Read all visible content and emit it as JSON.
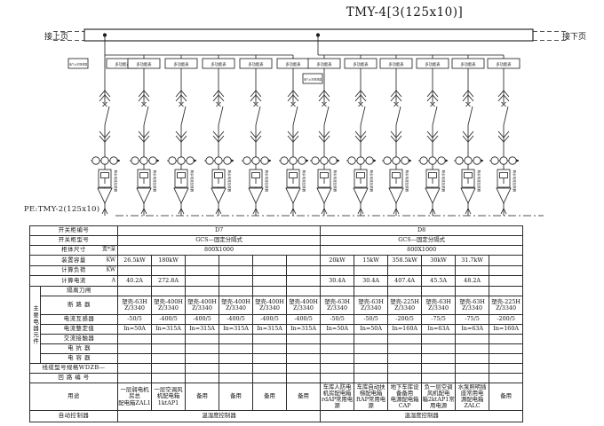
{
  "title": "TMY-4[3(125x10)]",
  "page_links": {
    "prev": "接上页",
    "next": "接下页"
  },
  "pe_label": "PE:TMY-2(125x10)",
  "colors": {
    "ink": "#1a1a1a",
    "paper": "#ffffff"
  },
  "feeders": {
    "meter_label": "多功能表",
    "aux_label": "电气火灾探测器",
    "ct_label": "剩余电流互感器",
    "positions": [
      118,
      162,
      204,
      246,
      288,
      330,
      365,
      406,
      446,
      487,
      527,
      567
    ],
    "aux_on": [
      0,
      6
    ]
  },
  "table": {
    "legend_group": "主要电器元件",
    "row_labels": {
      "cabinet_no": {
        "label": "开关柜编号"
      },
      "cabinet_model": {
        "label": "开关柜型号"
      },
      "cabinet_size": {
        "label": "柜体尺寸",
        "unit": "宽*深"
      },
      "capacity": {
        "label": "装置容量",
        "unit": "KW"
      },
      "load": {
        "label": "计算负荷",
        "unit": "KW"
      },
      "current": {
        "label": "计算电流",
        "unit": "A"
      },
      "isolator": {
        "label": "隔离刀闸"
      },
      "breaker": {
        "label": "断 路 器"
      },
      "ct": {
        "label": "电流互感器"
      },
      "setting": {
        "label": "电流整定值"
      },
      "contactor": {
        "label": "交流接触器"
      },
      "reactor": {
        "label": "电 抗 器"
      },
      "capacitor": {
        "label": "电 容 器"
      },
      "cable": {
        "label": "线缆型号规格WDZB—"
      },
      "circuit_no": {
        "label": "回 路 编 号"
      },
      "usage": {
        "label": "用途"
      },
      "controller": {
        "label": "自动控制器"
      }
    },
    "sections": [
      {
        "id": "D7",
        "model": "GCS—固定分隔式",
        "size": "800X1000",
        "capacity": [
          "26.5kW",
          "180kW",
          "",
          "",
          "",
          ""
        ],
        "load": [
          "",
          "",
          "",
          "",
          "",
          ""
        ],
        "current": [
          "40.2A",
          "272.8A",
          "",
          "",
          "",
          ""
        ],
        "breaker": [
          "塑壳-63H\nZ/3340",
          "塑壳-400H\nZ/3340",
          "塑壳-400H\nZ/3340",
          "塑壳-400H\nZ/3340",
          "塑壳-400H\nZ/3340",
          "塑壳-400H\nZ/3340"
        ],
        "ct": [
          "-50/5",
          "-400/5",
          "-400/5",
          "-400/5",
          "-400/5",
          "-400/5"
        ],
        "setting": [
          "In=50A",
          "In=315A",
          "In=315A",
          "In=315A",
          "In=315A",
          "In=315A"
        ],
        "usage": [
          "一层弱电机房总\n配电箱ZAL1",
          "一层空调风机配电箱\n1ktAP1",
          "备用",
          "备用",
          "备用",
          "备用"
        ],
        "controller": "温湿度控制器"
      },
      {
        "id": "D8",
        "model": "GCS—固定分隔式",
        "size": "800X1000",
        "capacity": [
          "20kW",
          "15kW",
          "358.5kW",
          "30kW",
          "31.7kW",
          ""
        ],
        "load": [
          "",
          "",
          "",
          "",
          "",
          ""
        ],
        "current": [
          "30.4A",
          "30.4A",
          "407.4A",
          "45.5A",
          "48.2A",
          ""
        ],
        "breaker": [
          "塑壳-63H\nZ/3340",
          "塑壳-63H\nZ/3340",
          "塑壳-225H\nZ/3340",
          "塑壳-63H\nZ/3340",
          "塑壳-63H\nZ/3340",
          "塑壳-225H\nZ/3340"
        ],
        "ct": [
          "-50/5",
          "-50/5",
          "-200/5",
          "-75/5",
          "-75/5",
          "-200/5"
        ],
        "setting": [
          "In=50A",
          "In=50A",
          "In=160A",
          "In=63A",
          "In=63A",
          "In=160A"
        ],
        "usage": [
          "车库人防电机房配电箱\nrdAP常用电源",
          "车库自动扶梯配电箱\nftAP常用电源",
          "地下车库设备备用\n电源配电箱CAP",
          "负一层空调风机配电\n箱2ktAP1常用电源",
          "水泵照明插座常用电\n源配电箱ZALC",
          "备用"
        ],
        "controller": "温湿度控制器"
      }
    ]
  }
}
